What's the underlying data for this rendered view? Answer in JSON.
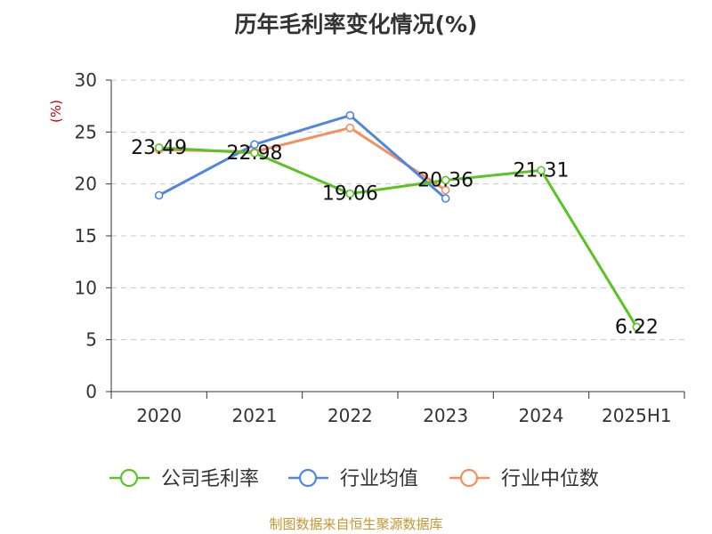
{
  "page": {
    "title": "历年毛利率变化情况(%)",
    "source_note": "制图数据来自恒生聚源数据库"
  },
  "chart_data": {
    "type": "line",
    "title": "历年毛利率变化情况(%)",
    "ylabel": "(%)",
    "xlabel": "",
    "categories": [
      "2020",
      "2021",
      "2022",
      "2023",
      "2024",
      "2025H1"
    ],
    "ylim": [
      0,
      30
    ],
    "yticks": [
      0,
      5,
      10,
      15,
      20,
      25,
      30
    ],
    "grid": true,
    "legend_position": "bottom",
    "series": [
      {
        "name": "公司毛利率",
        "color": "#5bc424",
        "values": [
          23.49,
          22.98,
          19.06,
          20.36,
          21.31,
          6.22
        ],
        "labels": [
          "23.49",
          "22.98",
          "19.06",
          "20.36",
          "21.31",
          "6.22"
        ]
      },
      {
        "name": "行业均值",
        "color": "#4f86e1",
        "values": [
          18.9,
          23.8,
          26.6,
          18.6,
          null,
          null
        ]
      },
      {
        "name": "行业中位数",
        "color": "#f5905d",
        "values": [
          23.3,
          23.1,
          25.4,
          19.4,
          null,
          null
        ]
      }
    ]
  }
}
